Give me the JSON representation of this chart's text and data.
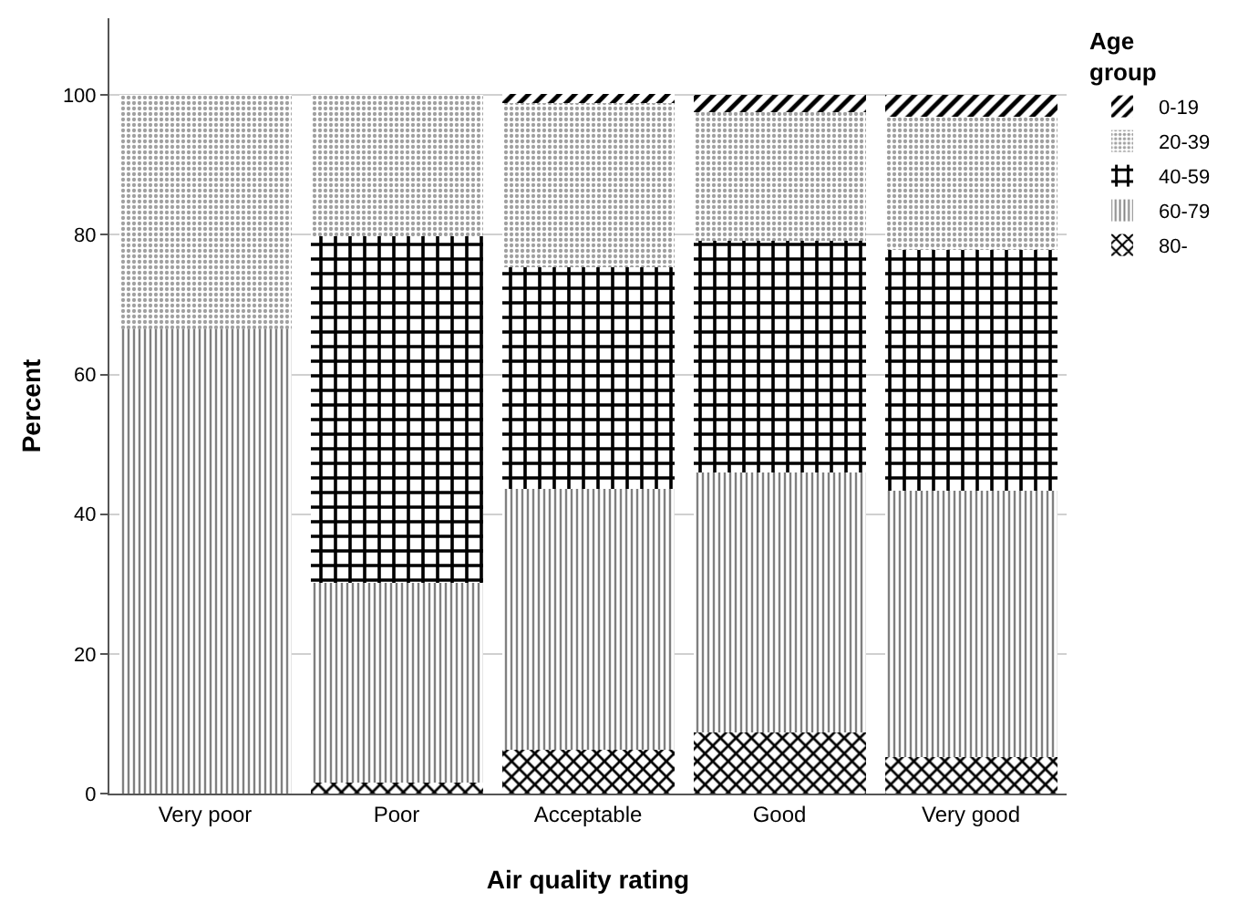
{
  "chart_data": {
    "type": "bar",
    "stacked": true,
    "xlabel": "Air quality rating",
    "ylabel": "Percent",
    "legend_title": "Age group",
    "legend": "top right",
    "grid": "y",
    "categories": [
      "Very poor",
      "Poor",
      "Acceptable",
      "Good",
      "Very good"
    ],
    "ylim": [
      0,
      111
    ],
    "yticks": [
      0,
      20,
      40,
      60,
      80,
      100
    ],
    "series": [
      {
        "name": "80-",
        "color": "#000000",
        "values": [
          0,
          1.6,
          6.3,
          8.7,
          5.2
        ]
      },
      {
        "name": "60-79",
        "color": "#808080",
        "values": [
          66.5,
          28.6,
          37.3,
          37.3,
          38.1
        ]
      },
      {
        "name": "40-59",
        "color": "#000000",
        "values": [
          0,
          49.6,
          31.8,
          33.1,
          34.5
        ]
      },
      {
        "name": "20-39",
        "color": "#a0a0a0",
        "values": [
          33.5,
          20.2,
          23.5,
          18.5,
          19.1
        ]
      },
      {
        "name": "0-19",
        "color": "#000000",
        "values": [
          0,
          0,
          1.3,
          2.4,
          3.1
        ]
      }
    ]
  }
}
